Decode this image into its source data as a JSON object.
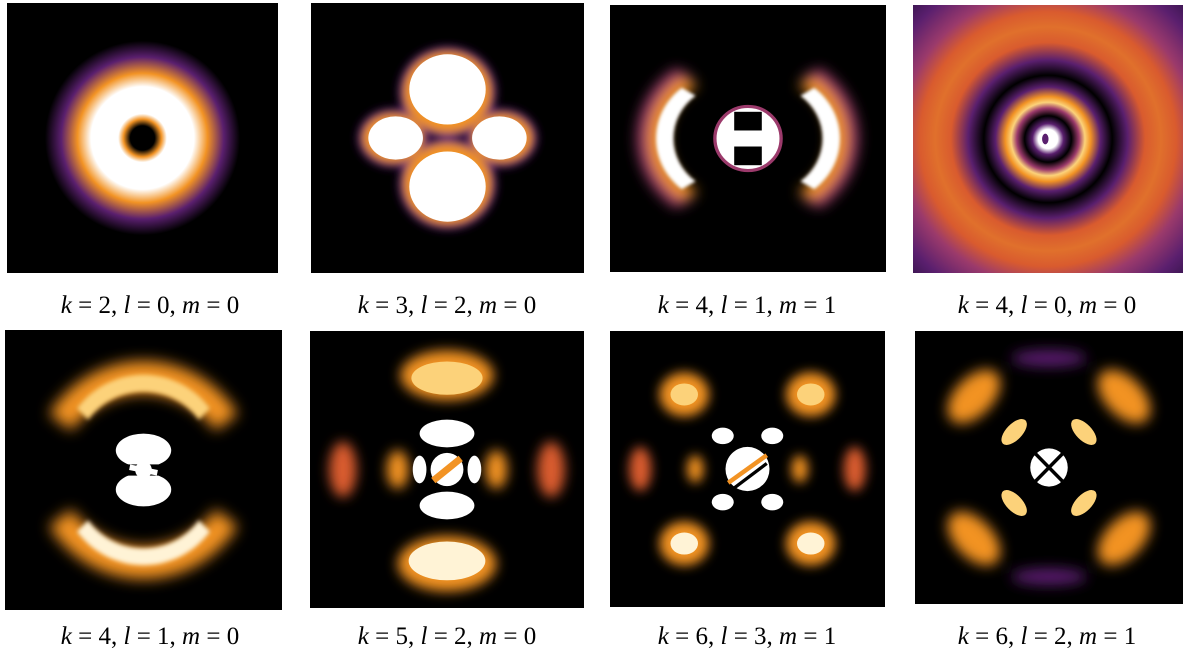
{
  "figure": {
    "panels": [
      {
        "k": "2",
        "l": "0",
        "m": "0"
      },
      {
        "k": "3",
        "l": "2",
        "m": "0"
      },
      {
        "k": "4",
        "l": "1",
        "m": "1"
      },
      {
        "k": "4",
        "l": "0",
        "m": "0"
      },
      {
        "k": "4",
        "l": "1",
        "m": "0"
      },
      {
        "k": "5",
        "l": "2",
        "m": "0"
      },
      {
        "k": "6",
        "l": "3",
        "m": "1"
      },
      {
        "k": "6",
        "l": "2",
        "m": "1"
      }
    ]
  },
  "colormap": {
    "name": "inferno",
    "stops": [
      "#000000",
      "#2a0b3d",
      "#5a1f6e",
      "#9b3a6b",
      "#d95b2e",
      "#f29324",
      "#fcd27a",
      "#ffffff"
    ]
  }
}
